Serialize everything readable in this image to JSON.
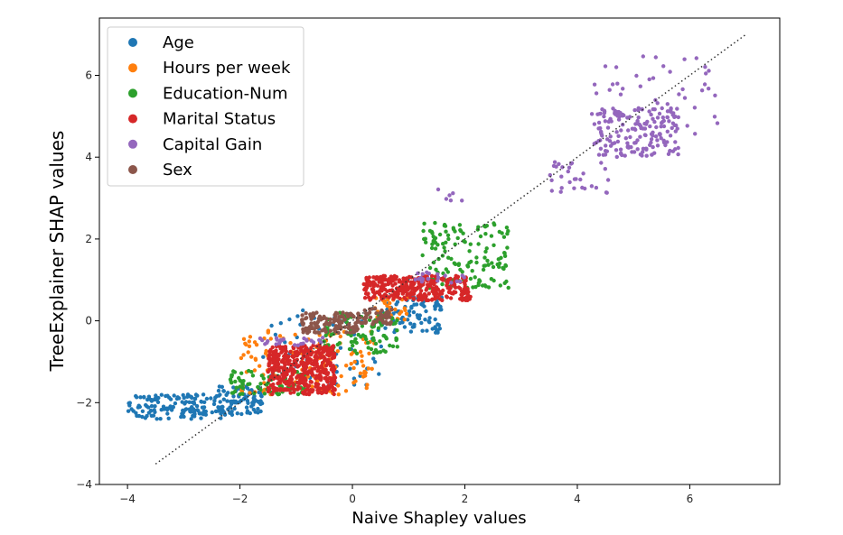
{
  "chart_data": {
    "type": "scatter",
    "xlabel": "Naive Shapley values",
    "ylabel": "TreeExplainer SHAP values",
    "xlim": [
      -4.5,
      7.6
    ],
    "ylim": [
      -4.0,
      7.4
    ],
    "xticks": [
      -4,
      -2,
      0,
      2,
      4,
      6
    ],
    "yticks": [
      -4,
      -2,
      0,
      2,
      4,
      6
    ],
    "xtick_labels": [
      "−4",
      "−2",
      "0",
      "2",
      "4",
      "6"
    ],
    "ytick_labels": [
      "−4",
      "−2",
      "0",
      "2",
      "4",
      "6"
    ],
    "grid": false,
    "legend_position": "top-left",
    "reference_line": {
      "style": "dotted",
      "color": "#333333",
      "from": [
        -3.5,
        -3.5
      ],
      "to": [
        7.0,
        7.0
      ]
    },
    "series": [
      {
        "name": "Age",
        "color": "#1f77b4",
        "clusters": [
          {
            "x": [
              -4.0,
              -2.3
            ],
            "y": [
              -2.4,
              -1.8
            ],
            "n": 140
          },
          {
            "x": [
              -2.4,
              -1.6
            ],
            "y": [
              -2.3,
              -1.6
            ],
            "n": 90
          },
          {
            "x": [
              -1.6,
              0.6
            ],
            "y": [
              -1.6,
              0.3
            ],
            "n": 60
          },
          {
            "x": [
              0.5,
              1.6
            ],
            "y": [
              -0.3,
              0.6
            ],
            "n": 90
          }
        ]
      },
      {
        "name": "Hours per week",
        "color": "#ff7f0e",
        "clusters": [
          {
            "x": [
              -2.0,
              0.4
            ],
            "y": [
              -1.8,
              -0.2
            ],
            "n": 140
          },
          {
            "x": [
              0.4,
              1.0
            ],
            "y": [
              0.0,
              0.6
            ],
            "n": 30
          }
        ]
      },
      {
        "name": "Education-Num",
        "color": "#2ca02c",
        "clusters": [
          {
            "x": [
              -2.2,
              -0.8
            ],
            "y": [
              -1.8,
              -1.2
            ],
            "n": 80
          },
          {
            "x": [
              -0.6,
              0.8
            ],
            "y": [
              -0.8,
              0.2
            ],
            "n": 100
          },
          {
            "x": [
              1.2,
              2.8
            ],
            "y": [
              0.8,
              2.4
            ],
            "n": 150
          }
        ]
      },
      {
        "name": "Marital Status",
        "color": "#d62728",
        "clusters": [
          {
            "x": [
              -1.5,
              -0.3
            ],
            "y": [
              -1.8,
              -0.6
            ],
            "n": 420
          },
          {
            "x": [
              0.2,
              2.1
            ],
            "y": [
              0.5,
              1.1
            ],
            "n": 320
          }
        ]
      },
      {
        "name": "Capital Gain",
        "color": "#9467bd",
        "clusters": [
          {
            "x": [
              4.3,
              5.8
            ],
            "y": [
              4.0,
              5.2
            ],
            "n": 170
          },
          {
            "x": [
              4.2,
              6.5
            ],
            "y": [
              4.4,
              6.5
            ],
            "n": 50
          },
          {
            "x": [
              3.5,
              4.6
            ],
            "y": [
              3.1,
              3.9
            ],
            "n": 30
          },
          {
            "x": [
              -1.7,
              -0.5
            ],
            "y": [
              -0.6,
              -0.4
            ],
            "n": 25
          },
          {
            "x": [
              1.1,
              2.2
            ],
            "y": [
              0.9,
              1.2
            ],
            "n": 20
          },
          {
            "x": [
              1.5,
              2.0
            ],
            "y": [
              2.9,
              3.3
            ],
            "n": 6
          }
        ]
      },
      {
        "name": "Sex",
        "color": "#8c564b",
        "clusters": [
          {
            "x": [
              -0.9,
              0.1
            ],
            "y": [
              -0.3,
              0.2
            ],
            "n": 140
          },
          {
            "x": [
              0.1,
              0.7
            ],
            "y": [
              -0.1,
              0.3
            ],
            "n": 60
          }
        ]
      }
    ]
  }
}
